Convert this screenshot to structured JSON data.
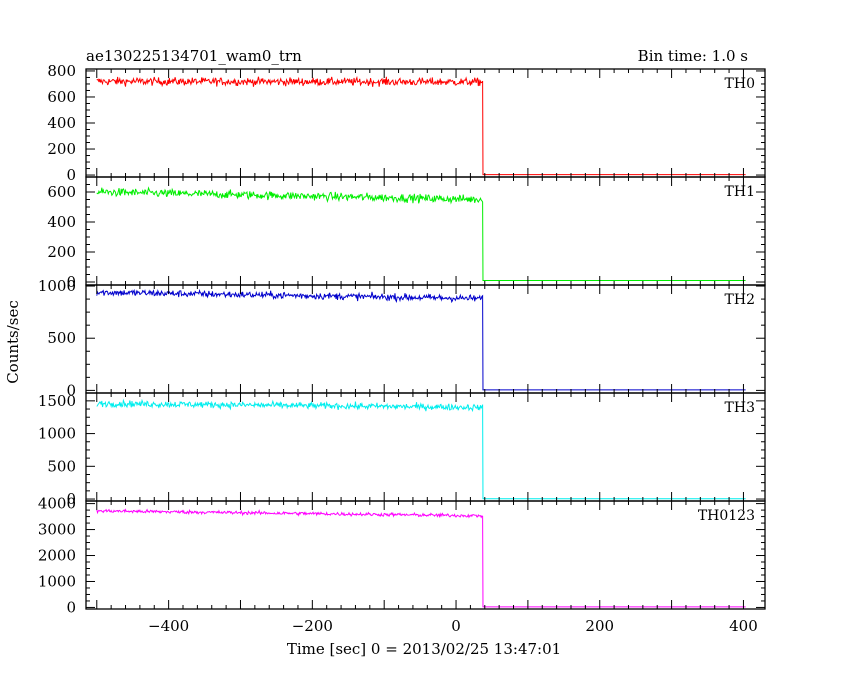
{
  "chart_data": {
    "type": "line",
    "title": "ae130225134701_wam0_trn",
    "subtitle": "Bin time: 1.0 s",
    "xlabel": "Time [sec] 0 = 2013/02/25 13:47:01",
    "ylabel": "Counts/sec",
    "xlim": [
      -515,
      430
    ],
    "x_ticks": [
      -400,
      -200,
      0,
      200,
      400
    ],
    "x_tick_labels": [
      "−400",
      "−200",
      "0",
      "200",
      "400"
    ],
    "grid": false,
    "drop_time": 37,
    "panels": [
      {
        "name": "TH0",
        "color": "#ff0000",
        "ylim": [
          -15,
          815
        ],
        "y_ticks": [
          0,
          200,
          400,
          600,
          800
        ],
        "y_tick_labels": [
          "0",
          "200",
          "400",
          "600",
          "800"
        ],
        "level_start": 720,
        "level_end": 715,
        "noise": 28,
        "post_level": 3
      },
      {
        "name": "TH1",
        "color": "#00ee00",
        "ylim": [
          -20,
          700
        ],
        "y_ticks": [
          0,
          200,
          400,
          600
        ],
        "y_tick_labels": [
          "0",
          "200",
          "400",
          "600"
        ],
        "level_start": 600,
        "level_end": 550,
        "noise": 25,
        "post_level": 10
      },
      {
        "name": "TH2",
        "color": "#0000cc",
        "ylim": [
          -25,
          1010
        ],
        "y_ticks": [
          0,
          500,
          1000
        ],
        "y_tick_labels": [
          "0",
          "500",
          "1000"
        ],
        "level_start": 940,
        "level_end": 880,
        "noise": 30,
        "post_level": 5
      },
      {
        "name": "TH3",
        "color": "#00eeee",
        "ylim": [
          -30,
          1620
        ],
        "y_ticks": [
          0,
          500,
          1000,
          1500
        ],
        "y_tick_labels": [
          "0",
          "500",
          "1000",
          "1500"
        ],
        "level_start": 1460,
        "level_end": 1400,
        "noise": 45,
        "post_level": 5
      },
      {
        "name": "TH0123",
        "color": "#ff00ff",
        "ylim": [
          -60,
          4100
        ],
        "y_ticks": [
          0,
          1000,
          2000,
          3000,
          4000
        ],
        "y_tick_labels": [
          "0",
          "1000",
          "2000",
          "3000",
          "4000"
        ],
        "level_start": 3720,
        "level_end": 3530,
        "noise": 60,
        "post_level": 20
      }
    ]
  }
}
